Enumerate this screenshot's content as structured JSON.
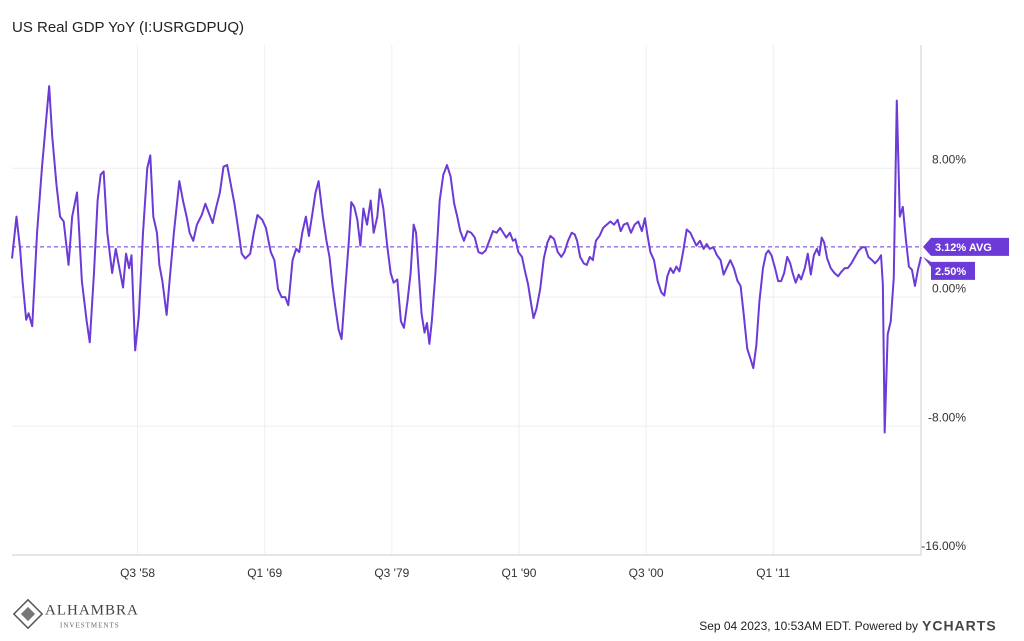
{
  "chart_data": {
    "type": "line",
    "title": "US Real GDP YoY (I:USRGDPUQ)",
    "color": "#6c3ad6",
    "grid": true,
    "xlim": [
      1948.13,
      2023.2
    ],
    "ylim": [
      -16,
      15.65
    ],
    "xticks": [
      {
        "value": 1958.5,
        "label": "Q3 '58"
      },
      {
        "value": 1969.0,
        "label": "Q1 '69"
      },
      {
        "value": 1979.5,
        "label": "Q3 '79"
      },
      {
        "value": 1990.0,
        "label": "Q1 '90"
      },
      {
        "value": 2000.5,
        "label": "Q3 '00"
      },
      {
        "value": 2011.0,
        "label": "Q1 '11"
      }
    ],
    "yticks": [
      {
        "value": 8,
        "label": "8.00%"
      },
      {
        "value": 0,
        "label": "0.00%"
      },
      {
        "value": -8,
        "label": "-8.00%"
      },
      {
        "value": -16,
        "label": "-16.00%"
      }
    ],
    "average": {
      "value": 3.12,
      "label": "3.12% AVG"
    },
    "last_value_label": "2.50%",
    "footer": "Sep 04 2023, 10:53AM EDT. Powered by",
    "brand": "YCHARTS",
    "logo": "ALHAMBRA",
    "logo_sub": "INVESTMENTS",
    "x": [
      1948.13,
      1948.5,
      1948.8,
      1949.0,
      1949.3,
      1949.5,
      1949.8,
      1950.2,
      1950.6,
      1950.95,
      1951.2,
      1951.45,
      1951.8,
      1952.1,
      1952.4,
      1952.8,
      1953.1,
      1953.5,
      1953.9,
      1954.3,
      1954.55,
      1954.9,
      1955.2,
      1955.45,
      1955.7,
      1956.0,
      1956.4,
      1956.7,
      1957.0,
      1957.3,
      1957.55,
      1957.8,
      1958.0,
      1958.3,
      1958.6,
      1958.95,
      1959.3,
      1959.55,
      1959.8,
      1960.1,
      1960.3,
      1960.55,
      1960.9,
      1961.2,
      1961.5,
      1961.95,
      1962.25,
      1962.55,
      1962.8,
      1963.1,
      1963.4,
      1963.8,
      1964.1,
      1964.4,
      1964.7,
      1965.0,
      1965.3,
      1965.6,
      1965.9,
      1966.2,
      1966.5,
      1966.8,
      1967.1,
      1967.4,
      1967.8,
      1968.1,
      1968.4,
      1968.8,
      1969.1,
      1969.5,
      1969.8,
      1970.1,
      1970.4,
      1970.7,
      1970.95,
      1971.3,
      1971.6,
      1971.85,
      1972.1,
      1972.4,
      1972.65,
      1972.9,
      1973.2,
      1973.45,
      1973.8,
      1974.1,
      1974.35,
      1974.6,
      1974.85,
      1975.1,
      1975.35,
      1975.65,
      1975.95,
      1976.15,
      1976.4,
      1976.65,
      1976.9,
      1977.15,
      1977.45,
      1977.75,
      1978.0,
      1978.3,
      1978.5,
      1978.8,
      1979.1,
      1979.4,
      1979.65,
      1979.95,
      1980.25,
      1980.5,
      1980.8,
      1981.05,
      1981.3,
      1981.5,
      1981.75,
      1981.95,
      1982.2,
      1982.4,
      1982.6,
      1982.8,
      1983.1,
      1983.45,
      1983.75,
      1984.05,
      1984.35,
      1984.65,
      1984.9,
      1985.15,
      1985.45,
      1985.75,
      1986.05,
      1986.35,
      1986.65,
      1986.95,
      1987.25,
      1987.55,
      1987.85,
      1988.15,
      1988.45,
      1988.7,
      1988.95,
      1989.25,
      1989.5,
      1989.7,
      1989.95,
      1990.25,
      1990.5,
      1990.75,
      1991.0,
      1991.2,
      1991.45,
      1991.75,
      1992.05,
      1992.35,
      1992.6,
      1992.9,
      1993.2,
      1993.5,
      1993.75,
      1994.05,
      1994.35,
      1994.6,
      1994.8,
      1995.05,
      1995.35,
      1995.6,
      1995.85,
      1996.1,
      1996.35,
      1996.65,
      1996.95,
      1997.25,
      1997.55,
      1997.85,
      1998.15,
      1998.4,
      1998.65,
      1998.95,
      1999.25,
      1999.55,
      1999.85,
      2000.15,
      2000.4,
      2000.6,
      2000.85,
      2001.15,
      2001.45,
      2001.75,
      2002.0,
      2002.25,
      2002.5,
      2002.75,
      2003.0,
      2003.25,
      2003.55,
      2003.85,
      2004.15,
      2004.4,
      2004.65,
      2004.95,
      2005.25,
      2005.5,
      2005.75,
      2006.05,
      2006.35,
      2006.65,
      2006.9,
      2007.2,
      2007.45,
      2007.75,
      2008.05,
      2008.3,
      2008.55,
      2008.85,
      2009.15,
      2009.35,
      2009.6,
      2009.85,
      2010.15,
      2010.4,
      2010.6,
      2010.85,
      2011.15,
      2011.4,
      2011.65,
      2011.9,
      2012.15,
      2012.4,
      2012.6,
      2012.85,
      2013.1,
      2013.3,
      2013.6,
      2013.85,
      2014.1,
      2014.35,
      2014.6,
      2014.8,
      2015.0,
      2015.2,
      2015.45,
      2015.75,
      2016.05,
      2016.35,
      2016.65,
      2016.9,
      2017.15,
      2017.45,
      2017.75,
      2018.05,
      2018.35,
      2018.6,
      2018.85,
      2019.15,
      2019.4,
      2019.65,
      2019.9,
      2020.05,
      2020.2,
      2020.45,
      2020.7,
      2020.95,
      2021.2,
      2021.45,
      2021.7,
      2021.95,
      2022.2,
      2022.45,
      2022.7,
      2022.95,
      2023.2
    ],
    "values": [
      2.4,
      5.0,
      3.0,
      1.0,
      -1.4,
      -1.0,
      -1.8,
      4.0,
      8.0,
      11.0,
      13.1,
      10.0,
      7.0,
      5.0,
      4.7,
      2.0,
      5.0,
      6.5,
      1.0,
      -1.5,
      -2.8,
      1.5,
      6.0,
      7.6,
      7.8,
      4.0,
      1.5,
      3.0,
      1.8,
      0.6,
      2.7,
      1.8,
      2.6,
      -3.3,
      -1.2,
      4.0,
      8.0,
      8.8,
      5.0,
      4.0,
      2.0,
      1.0,
      -1.1,
      1.5,
      4.0,
      7.2,
      6.0,
      5.0,
      4.0,
      3.5,
      4.5,
      5.1,
      5.8,
      5.2,
      4.6,
      5.6,
      6.5,
      8.1,
      8.2,
      7.0,
      5.8,
      4.3,
      2.7,
      2.4,
      2.7,
      4.0,
      5.1,
      4.8,
      4.3,
      2.8,
      2.3,
      0.5,
      0.0,
      0.0,
      -0.5,
      2.3,
      3.0,
      2.8,
      4.0,
      5.0,
      3.8,
      5.0,
      6.5,
      7.2,
      5.0,
      3.5,
      2.5,
      0.7,
      -0.7,
      -2.0,
      -2.6,
      0.5,
      3.5,
      5.9,
      5.6,
      4.8,
      3.2,
      5.5,
      4.5,
      6.0,
      4.0,
      5.0,
      6.7,
      5.5,
      3.3,
      1.5,
      0.9,
      1.1,
      -1.5,
      -1.9,
      -0.2,
      1.5,
      4.5,
      4.0,
      1.2,
      -1.0,
      -2.2,
      -1.6,
      -2.9,
      -1.5,
      1.5,
      6.0,
      7.6,
      8.2,
      7.5,
      5.8,
      5.0,
      4.1,
      3.5,
      4.1,
      4.0,
      3.7,
      2.8,
      2.7,
      2.9,
      3.5,
      4.1,
      4.0,
      4.3,
      4.0,
      3.7,
      4.0,
      3.5,
      3.6,
      2.8,
      2.5,
      1.6,
      0.8,
      -0.4,
      -1.3,
      -0.7,
      0.5,
      2.4,
      3.4,
      3.8,
      3.6,
      2.8,
      2.5,
      2.8,
      3.5,
      4.0,
      3.9,
      3.5,
      2.5,
      2.1,
      2.0,
      2.5,
      2.3,
      3.5,
      3.8,
      4.3,
      4.5,
      4.7,
      4.5,
      4.8,
      4.1,
      4.5,
      4.6,
      4.0,
      4.5,
      4.7,
      4.1,
      4.9,
      3.9,
      2.8,
      2.3,
      1.0,
      0.3,
      0.1,
      1.3,
      1.8,
      1.5,
      1.9,
      1.6,
      2.8,
      4.2,
      4.0,
      3.6,
      3.2,
      3.5,
      3.0,
      3.3,
      3.0,
      3.1,
      2.6,
      2.3,
      1.4,
      1.9,
      2.3,
      1.8,
      1.0,
      0.7,
      -1.0,
      -3.2,
      -3.9,
      -4.4,
      -3.0,
      -0.3,
      1.8,
      2.7,
      2.9,
      2.6,
      1.8,
      1.0,
      1.0,
      1.5,
      2.5,
      2.1,
      1.5,
      0.9,
      1.4,
      1.1,
      1.8,
      2.7,
      1.4,
      2.6,
      3.0,
      2.6,
      3.7,
      3.4,
      2.4,
      1.8,
      1.5,
      1.3,
      1.6,
      1.8,
      1.8,
      2.1,
      2.5,
      2.9,
      3.1,
      3.1,
      2.5,
      2.3,
      2.1,
      2.3,
      2.6,
      0.8,
      -8.4,
      -2.3,
      -1.5,
      1.2,
      12.2,
      5.0,
      5.6,
      3.6,
      1.9,
      1.7,
      0.7,
      1.7,
      2.5
    ]
  }
}
